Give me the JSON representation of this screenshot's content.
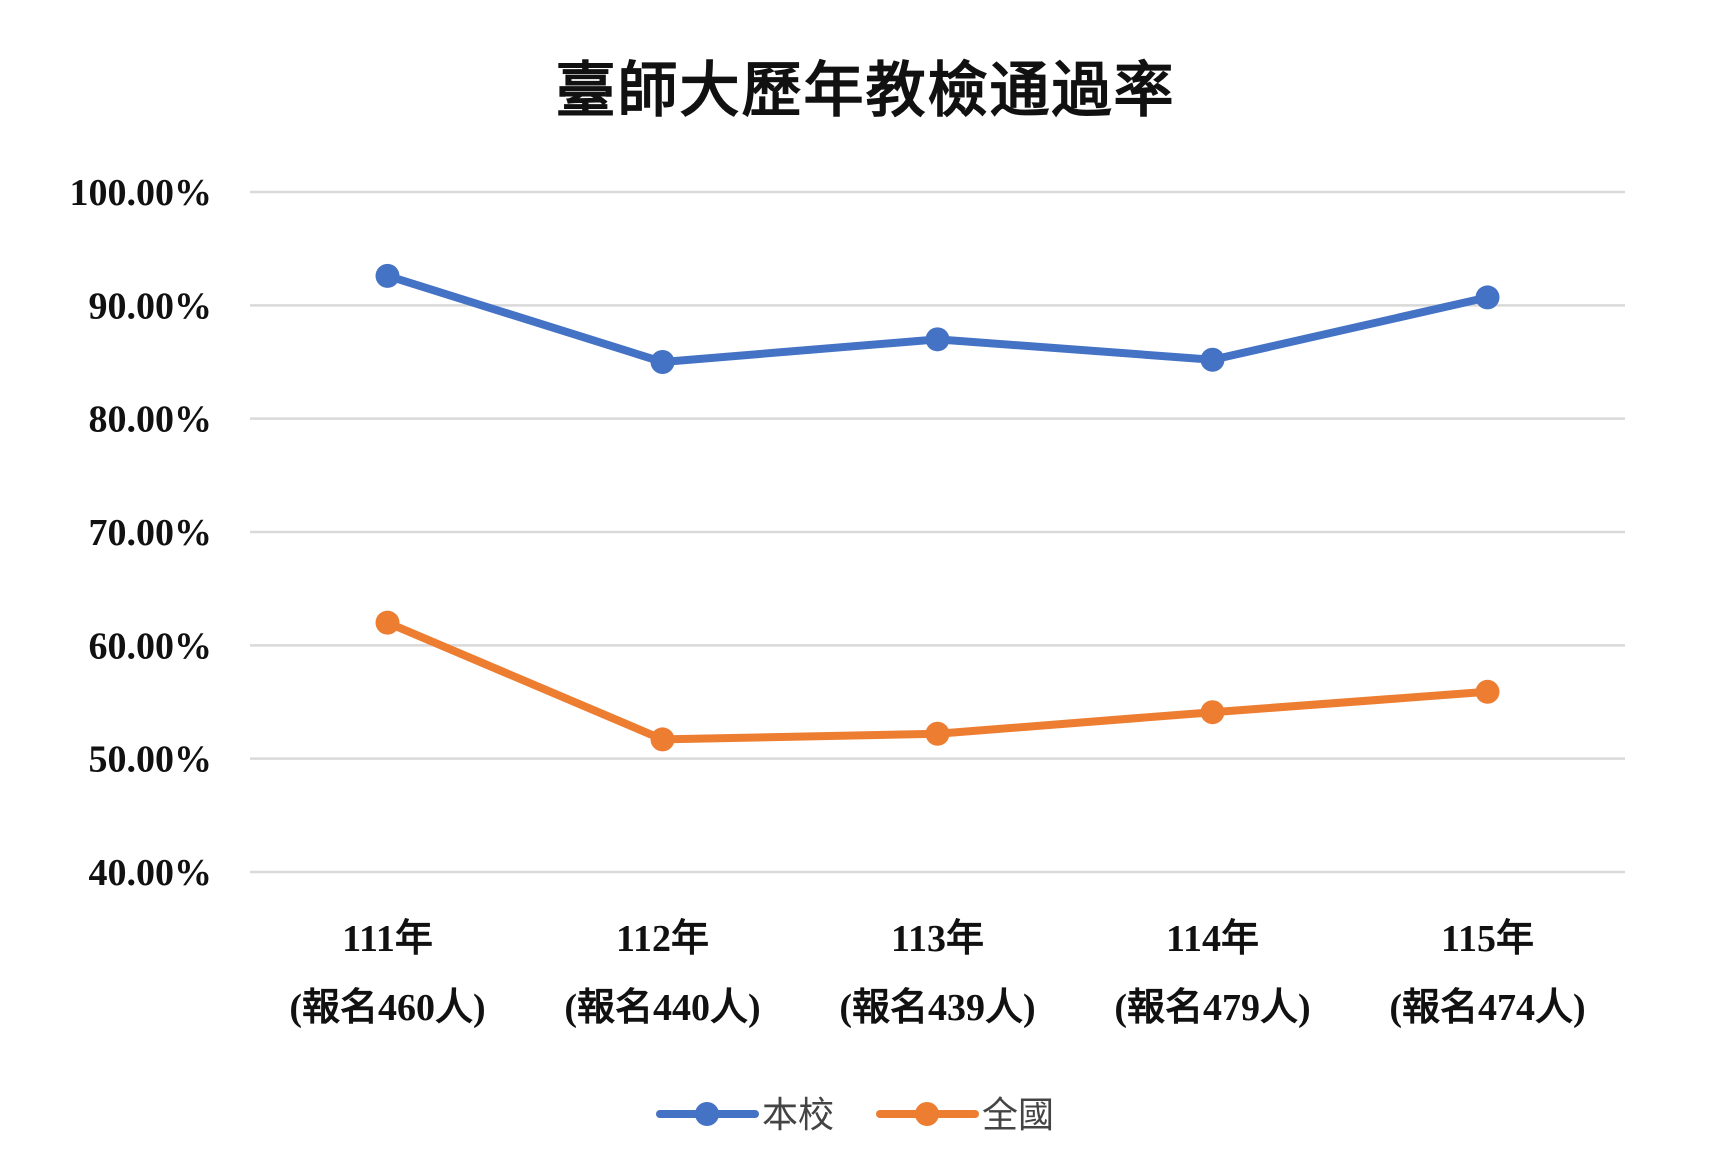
{
  "chart_data": {
    "type": "line",
    "title": "臺師大歷年教檢通過率",
    "xlabel": "",
    "ylabel": "",
    "categories": [
      [
        "111年",
        "(報名460人)"
      ],
      [
        "112年",
        "(報名440人)"
      ],
      [
        "113年",
        "(報名439人)"
      ],
      [
        "114年",
        "(報名479人)"
      ],
      [
        "115年",
        "(報名474人)"
      ]
    ],
    "ylim": [
      40,
      100
    ],
    "y_ticks": [
      "100.00%",
      "90.00%",
      "80.00%",
      "70.00%",
      "60.00%",
      "50.00%",
      "40.00%"
    ],
    "y_tick_values": [
      100,
      90,
      80,
      70,
      60,
      50,
      40
    ],
    "grid": true,
    "legend_position": "bottom",
    "series": [
      {
        "name": "本校",
        "color": "#4472C4",
        "values": [
          92.6,
          85.0,
          87.0,
          85.2,
          90.7
        ]
      },
      {
        "name": "全國",
        "color": "#ED7D31",
        "values": [
          62.0,
          51.7,
          52.2,
          54.1,
          55.9
        ]
      }
    ]
  }
}
